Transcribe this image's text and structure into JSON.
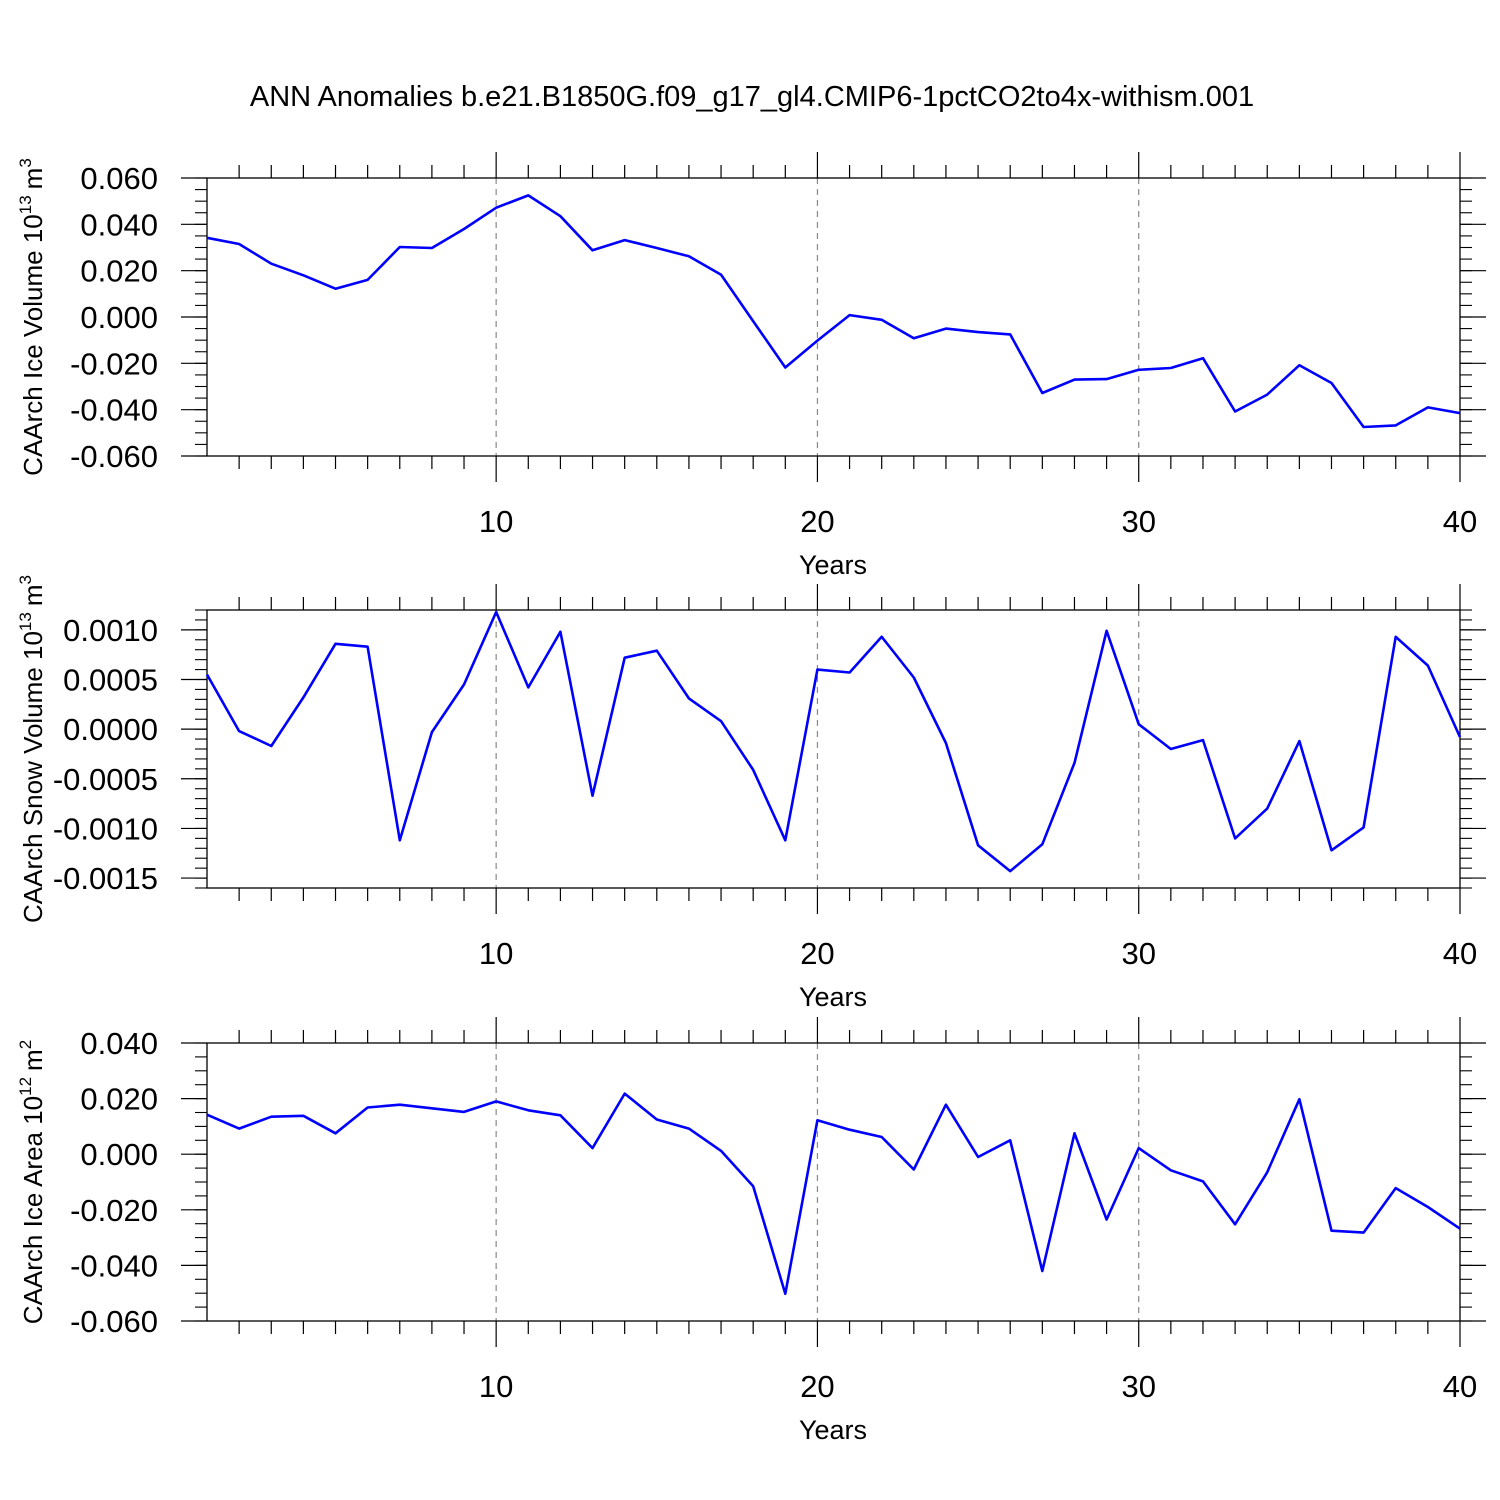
{
  "title": "ANN Anomalies b.e21.B1850G.f09_g17_gl4.CMIP6-1pctCO2to4x-withism.001",
  "line_color": "#0000ff",
  "chart_data": [
    {
      "type": "line",
      "ylabel_main": "CAArch Ice Volume 10",
      "ylabel_exp": "13",
      "ylabel_unit": "m",
      "ylabel_unit_exp": "3",
      "xlabel": "Years",
      "xlim": [
        1,
        40
      ],
      "ylim": [
        -0.06,
        0.06
      ],
      "xticks": [
        10,
        20,
        30,
        40
      ],
      "xtick_labels": [
        "10",
        "20",
        "30",
        "40"
      ],
      "yticks": [
        -0.06,
        -0.04,
        -0.02,
        0.0,
        0.02,
        0.04,
        0.06
      ],
      "ytick_labels": [
        "-0.060",
        "-0.040",
        "-0.020",
        "0.000",
        "0.020",
        "0.040",
        "0.060"
      ],
      "y_minor_step": 0.005,
      "x": [
        1,
        2,
        3,
        4,
        5,
        6,
        7,
        8,
        9,
        10,
        11,
        12,
        13,
        14,
        15,
        16,
        17,
        18,
        19,
        20,
        21,
        22,
        23,
        24,
        25,
        26,
        27,
        28,
        29,
        30,
        31,
        32,
        33,
        34,
        35,
        36,
        37,
        38,
        39,
        40
      ],
      "values": [
        0.0342,
        0.0315,
        0.023,
        0.018,
        0.0122,
        0.016,
        0.0302,
        0.0298,
        0.038,
        0.0472,
        0.0525,
        0.0435,
        0.0288,
        0.0332,
        0.0298,
        0.0262,
        0.0182,
        -0.0018,
        -0.0218,
        -0.0102,
        0.0008,
        -0.0012,
        -0.0092,
        -0.005,
        -0.0065,
        -0.0075,
        -0.0328,
        -0.027,
        -0.0268,
        -0.0228,
        -0.022,
        -0.0178,
        -0.0408,
        -0.0335,
        -0.0208,
        -0.0285,
        -0.0475,
        -0.0468,
        -0.039,
        -0.0415
      ]
    },
    {
      "type": "line",
      "ylabel_main": "CAArch Snow Volume 10",
      "ylabel_exp": "13",
      "ylabel_unit": "m",
      "ylabel_unit_exp": "3",
      "xlabel": "Years",
      "xlim": [
        1,
        40
      ],
      "ylim": [
        -0.0016,
        0.0012
      ],
      "xticks": [
        10,
        20,
        30,
        40
      ],
      "xtick_labels": [
        "10",
        "20",
        "30",
        "40"
      ],
      "yticks": [
        -0.0015,
        -0.001,
        -0.0005,
        0.0,
        0.0005,
        0.001
      ],
      "ytick_labels": [
        "-0.0015",
        "-0.0010",
        "-0.0005",
        "0.0000",
        "0.0005",
        "0.0010"
      ],
      "y_minor_step": 0.0001,
      "x": [
        1,
        2,
        3,
        4,
        5,
        6,
        7,
        8,
        9,
        10,
        11,
        12,
        13,
        14,
        15,
        16,
        17,
        18,
        19,
        20,
        21,
        22,
        23,
        24,
        25,
        26,
        27,
        28,
        29,
        30,
        31,
        32,
        33,
        34,
        35,
        36,
        37,
        38,
        39,
        40
      ],
      "values": [
        0.00055,
        -2e-05,
        -0.00017,
        0.00032,
        0.00086,
        0.00083,
        -0.00112,
        -3e-05,
        0.00045,
        0.00118,
        0.00042,
        0.00098,
        -0.00067,
        0.00072,
        0.00079,
        0.00031,
        8e-05,
        -0.00041,
        -0.00112,
        0.0006,
        0.00057,
        0.00093,
        0.00052,
        -0.00014,
        -0.00117,
        -0.00143,
        -0.00116,
        -0.00034,
        0.00099,
        5e-05,
        -0.0002,
        -0.00011,
        -0.0011,
        -0.0008,
        -0.00012,
        -0.00122,
        -0.00099,
        0.00093,
        0.00064,
        -8e-05
      ]
    },
    {
      "type": "line",
      "ylabel_main": "CAArch Ice Area 10",
      "ylabel_exp": "12",
      "ylabel_unit": "m",
      "ylabel_unit_exp": "2",
      "xlabel": "Years",
      "xlim": [
        1,
        40
      ],
      "ylim": [
        -0.06,
        0.04
      ],
      "xticks": [
        10,
        20,
        30,
        40
      ],
      "xtick_labels": [
        "10",
        "20",
        "30",
        "40"
      ],
      "yticks": [
        -0.06,
        -0.04,
        -0.02,
        0.0,
        0.02,
        0.04
      ],
      "ytick_labels": [
        "-0.060",
        "-0.040",
        "-0.020",
        "0.000",
        "0.020",
        "0.040"
      ],
      "y_minor_step": 0.005,
      "x": [
        1,
        2,
        3,
        4,
        5,
        6,
        7,
        8,
        9,
        10,
        11,
        12,
        13,
        14,
        15,
        16,
        17,
        18,
        19,
        20,
        21,
        22,
        23,
        24,
        25,
        26,
        27,
        28,
        29,
        30,
        31,
        32,
        33,
        34,
        35,
        36,
        37,
        38,
        39,
        40
      ],
      "values": [
        0.0142,
        0.0092,
        0.0135,
        0.0138,
        0.0075,
        0.0168,
        0.0178,
        0.0165,
        0.0152,
        0.019,
        0.0158,
        0.014,
        0.0022,
        0.0218,
        0.0125,
        0.0092,
        0.0012,
        -0.0115,
        -0.0502,
        0.0122,
        0.0088,
        0.0062,
        -0.0055,
        0.0178,
        -0.001,
        0.005,
        -0.042,
        0.0075,
        -0.0235,
        0.0022,
        -0.0058,
        -0.0098,
        -0.0252,
        -0.0065,
        0.0198,
        -0.0275,
        -0.0282,
        -0.0122,
        -0.019,
        -0.0268
      ]
    }
  ]
}
